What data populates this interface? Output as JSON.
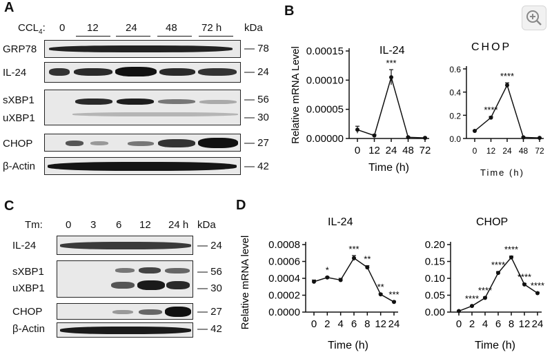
{
  "panels": {
    "A": "A",
    "B": "B",
    "C": "C",
    "D": "D"
  },
  "panelA": {
    "treatment_label": "CCL",
    "treatment_sub": "4",
    "treatment_colon": ":",
    "timepoints": [
      "0",
      "12",
      "24",
      "48",
      "72 h"
    ],
    "kda": "kDa",
    "rows": [
      {
        "name": "GRP78",
        "mw": "78"
      },
      {
        "name": "IL-24",
        "mw": "24"
      },
      {
        "name": "sXBP1",
        "mw": "56"
      },
      {
        "name": "uXBP1",
        "mw": "30"
      },
      {
        "name": "CHOP",
        "mw": "27"
      },
      {
        "name": "β-Actin",
        "mw": "42"
      }
    ]
  },
  "panelC": {
    "treatment_label": "Tm:",
    "timepoints": [
      "0",
      "3",
      "6",
      "12",
      "24 h"
    ],
    "kda": "kDa",
    "rows": [
      {
        "name": "IL-24",
        "mw": "24"
      },
      {
        "name": "sXBP1",
        "mw": "56"
      },
      {
        "name": "uXBP1",
        "mw": "30"
      },
      {
        "name": "CHOP",
        "mw": "27"
      },
      {
        "name": "β-Actin",
        "mw": "42"
      }
    ]
  },
  "zoom_icon": "zoom-in-icon",
  "chart_data": [
    {
      "type": "line",
      "panel": "B",
      "title": "IL-24",
      "xlabel": "Time (h)",
      "ylabel": "Relative mRNA Level",
      "x": [
        "0",
        "12",
        "24",
        "48",
        "72"
      ],
      "values": [
        1.5e-05,
        5e-06,
        0.000105,
        2e-06,
        1e-06
      ],
      "errors": [
        6e-06,
        2e-06,
        1.3e-05,
        1e-06,
        1e-06
      ],
      "yticks": [
        "0.00000",
        "0.00005",
        "0.00010",
        "0.00015"
      ],
      "ylim": [
        0,
        0.00015
      ],
      "annotations": [
        "",
        "",
        "***",
        "",
        ""
      ]
    },
    {
      "type": "line",
      "panel": "B",
      "title": "CHOP",
      "xlabel": "Time (h)",
      "ylabel": "",
      "x": [
        "0",
        "12",
        "24",
        "48",
        "72"
      ],
      "values": [
        0.065,
        0.18,
        0.46,
        0.01,
        0.005
      ],
      "errors": [
        0.005,
        0.01,
        0.02,
        0.003,
        0.002
      ],
      "yticks": [
        "0.0",
        "0.2",
        "0.4",
        "0.6"
      ],
      "ylim": [
        0,
        0.6
      ],
      "annotations": [
        "",
        "****",
        "****",
        "",
        ""
      ]
    },
    {
      "type": "line",
      "panel": "D",
      "title": "IL-24",
      "xlabel": "Time (h)",
      "ylabel": "Relative mRNA level",
      "x": [
        "0",
        "2",
        "4",
        "6",
        "8",
        "12",
        "24"
      ],
      "values": [
        0.00036,
        0.00041,
        0.00038,
        0.00064,
        0.00053,
        0.00021,
        0.00012
      ],
      "errors": [
        2e-05,
        1e-05,
        2e-05,
        3e-05,
        2e-05,
        1e-05,
        1e-05
      ],
      "yticks": [
        "0.0000",
        "0.0002",
        "0.0004",
        "0.0006",
        "0.0008"
      ],
      "ylim": [
        0,
        0.0008
      ],
      "annotations": [
        "",
        "*",
        "",
        "***",
        "**",
        "**",
        "***"
      ]
    },
    {
      "type": "line",
      "panel": "D",
      "title": "CHOP",
      "xlabel": "Time (h)",
      "ylabel": "",
      "x": [
        "0",
        "2",
        "4",
        "6",
        "8",
        "12",
        "24"
      ],
      "values": [
        0.003,
        0.018,
        0.042,
        0.116,
        0.162,
        0.082,
        0.056
      ],
      "errors": [
        0.001,
        0.002,
        0.003,
        0.004,
        0.004,
        0.003,
        0.003
      ],
      "yticks": [
        "0.00",
        "0.05",
        "0.10",
        "0.15",
        "0.20"
      ],
      "ylim": [
        0,
        0.2
      ],
      "annotations": [
        "",
        "****",
        "****",
        "****",
        "****",
        "****",
        "****"
      ]
    }
  ]
}
